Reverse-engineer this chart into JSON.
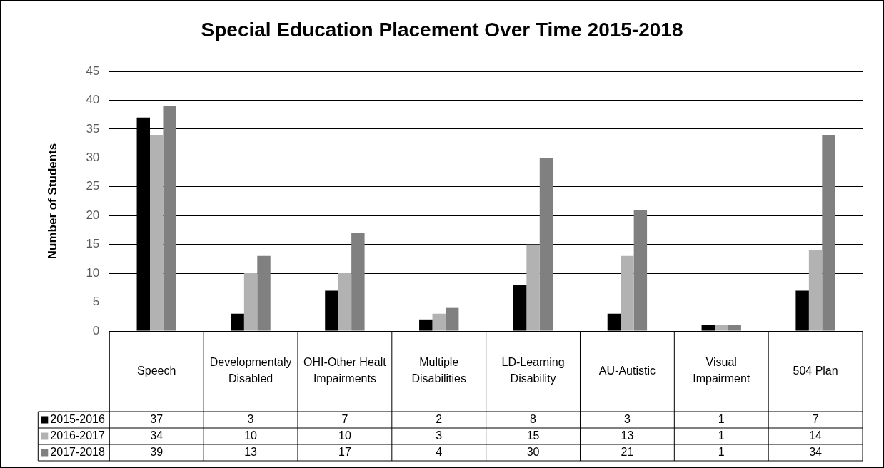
{
  "chart_data": {
    "type": "bar",
    "title": "Special Education Placement Over Time 2015-2018",
    "ylabel": "Number of Students",
    "categories": [
      "Speech",
      "Developmentaly Disabled",
      "OHI-Other Healt Impairments",
      "Multiple Disabilities",
      "LD-Learning Disability",
      "AU-Autistic",
      "Visual Impairment",
      "504 Plan"
    ],
    "series": [
      {
        "name": "2015-2016",
        "color": "#000000",
        "values": [
          37,
          3,
          7,
          2,
          8,
          3,
          1,
          7
        ]
      },
      {
        "name": "2016-2017",
        "color": "#b2b2b2",
        "values": [
          34,
          10,
          10,
          3,
          15,
          13,
          1,
          14
        ]
      },
      {
        "name": "2017-2018",
        "color": "#808080",
        "values": [
          39,
          13,
          17,
          4,
          30,
          21,
          1,
          34
        ]
      }
    ],
    "ylim": [
      0,
      45
    ],
    "yticks": [
      0,
      5,
      10,
      15,
      20,
      25,
      30,
      35,
      40,
      45
    ],
    "grid": "y",
    "legend": "bottom",
    "data_labels": true
  }
}
